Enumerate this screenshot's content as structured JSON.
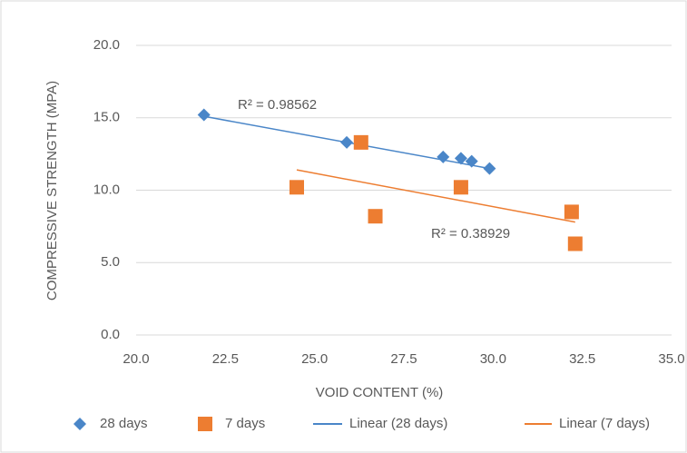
{
  "chart_data": {
    "type": "scatter",
    "x_label": "VOID CONTENT (%)",
    "y_label": "COMPRESSIVE STRENGTH (MPA)",
    "xlim": [
      20,
      35
    ],
    "ylim": [
      0,
      20
    ],
    "xticks": [
      {
        "value": 20,
        "label": "20.0"
      },
      {
        "value": 22.5,
        "label": "22.5"
      },
      {
        "value": 25,
        "label": "25.0"
      },
      {
        "value": 27.5,
        "label": "27.5"
      },
      {
        "value": 30,
        "label": "30.0"
      },
      {
        "value": 32.5,
        "label": "32.5"
      },
      {
        "value": 35,
        "label": "35.0"
      }
    ],
    "yticks": [
      {
        "value": 0,
        "label": "0.0"
      },
      {
        "value": 5,
        "label": "5.0"
      },
      {
        "value": 10,
        "label": "10.0"
      },
      {
        "value": 15,
        "label": "15.0"
      },
      {
        "value": 20,
        "label": "20.0"
      }
    ],
    "grid": true,
    "legend": "bottom",
    "series": [
      {
        "name": "28 days",
        "color": "#4a86c8",
        "marker": "diamond",
        "x": [
          21.9,
          25.9,
          28.6,
          29.1,
          29.4,
          29.9
        ],
        "values": [
          15.2,
          13.3,
          12.3,
          12.2,
          12.0,
          11.5
        ]
      },
      {
        "name": "7 days",
        "color": "#ed7d31",
        "marker": "square",
        "x": [
          24.5,
          26.3,
          26.7,
          29.1,
          32.2,
          32.3
        ],
        "values": [
          10.2,
          13.3,
          8.2,
          10.2,
          8.5,
          6.3
        ]
      }
    ],
    "trendlines": [
      {
        "name": "Linear (28 days)",
        "color": "#4a86c8",
        "x": [
          21.9,
          29.9
        ],
        "values": [
          15.1,
          11.5
        ]
      },
      {
        "name": "Linear (7 days)",
        "color": "#ed7d31",
        "x": [
          24.5,
          32.3
        ],
        "values": [
          11.4,
          7.8
        ]
      }
    ],
    "annotations": [
      "R² = 0.98562",
      "R² = 0.38929"
    ]
  }
}
